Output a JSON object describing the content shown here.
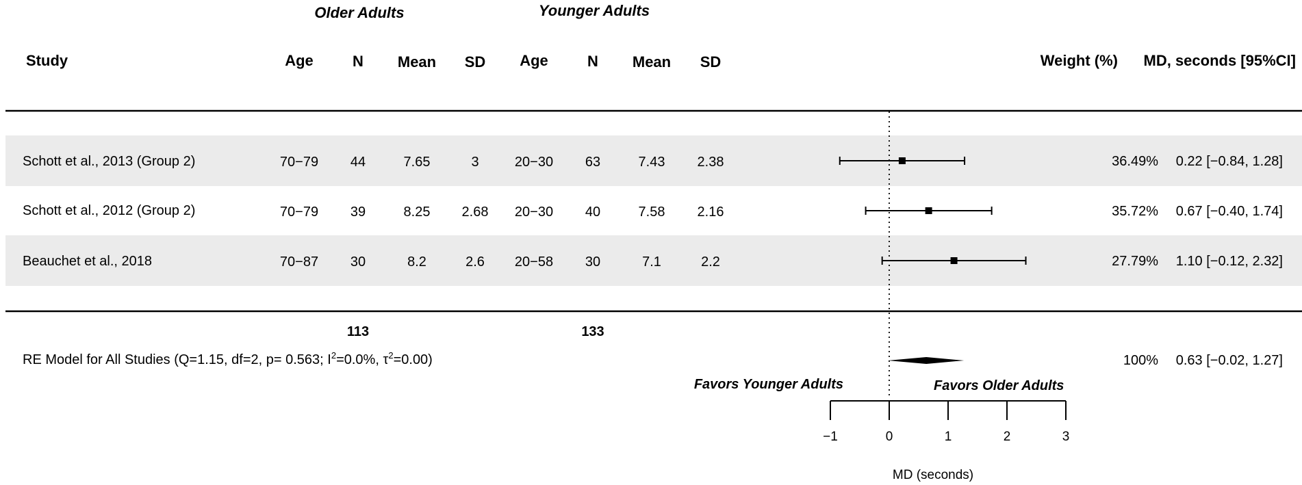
{
  "chart_data": {
    "type": "forest",
    "group_headers": [
      "Older Adults",
      "Younger Adults"
    ],
    "columns": [
      "Study",
      "Age",
      "N",
      "Mean",
      "SD",
      "Age",
      "N",
      "Mean",
      "SD",
      "Weight (%)",
      "MD, seconds [95%CI]"
    ],
    "studies": [
      {
        "study": "Schott et al., 2013 (Group 2)",
        "older": {
          "age": "70−79",
          "n": "44",
          "mean": "7.65",
          "sd": "3"
        },
        "younger": {
          "age": "20−30",
          "n": "63",
          "mean": "7.43",
          "sd": "2.38"
        },
        "weight_label": "36.49%",
        "ci_label": "0.22 [−0.84, 1.28]",
        "md": 0.22,
        "lower": -0.84,
        "upper": 1.28
      },
      {
        "study": "Schott et al., 2012 (Group 2)",
        "older": {
          "age": "70−79",
          "n": "39",
          "mean": "8.25",
          "sd": "2.68"
        },
        "younger": {
          "age": "20−30",
          "n": "40",
          "mean": "7.58",
          "sd": "2.16"
        },
        "weight_label": "35.72%",
        "ci_label": "0.67 [−0.40, 1.74]",
        "md": 0.67,
        "lower": -0.4,
        "upper": 1.74
      },
      {
        "study": "Beauchet et al., 2018",
        "older": {
          "age": "70−87",
          "n": "30",
          "mean": "8.2",
          "sd": "2.6"
        },
        "younger": {
          "age": "20−58",
          "n": "30",
          "mean": "7.1",
          "sd": "2.2"
        },
        "weight_label": "27.79%",
        "ci_label": "1.10 [−0.12, 2.32]",
        "md": 1.1,
        "lower": -0.12,
        "upper": 2.32
      }
    ],
    "totals": {
      "older_n": "113",
      "younger_n": "133"
    },
    "summary": {
      "label_prefix": "RE Model for All Studies (Q=1.15, df=2, p= 0.563; I",
      "i2_sup": "2",
      "label_mid": "=0.0%, τ",
      "tau_sup": "2",
      "label_suffix": "=0.00)",
      "weight_label": "100%",
      "ci_label": "0.63 [−0.02, 1.27]",
      "md": 0.63,
      "lower": -0.02,
      "upper": 1.27
    },
    "favors_left": "Favors Younger Adults",
    "favors_right": "Favors Older Adults",
    "xlabel": "MD (seconds)",
    "xticks": [
      -1,
      0,
      1,
      2,
      3
    ],
    "xtick_labels": [
      "−1",
      "0",
      "1",
      "2",
      "3"
    ],
    "xlim": [
      -1,
      3
    ],
    "reference_line": 0,
    "row_shading": "#ebebeb"
  }
}
